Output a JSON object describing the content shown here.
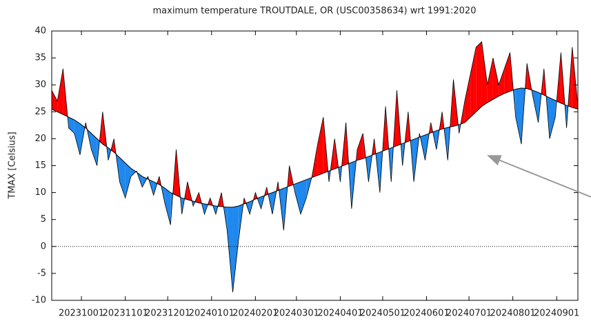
{
  "chart_data": {
    "type": "anomaly",
    "title": "maximum temperature TROUTDALE, OR (USC00358634) wrt 1991:2020",
    "y_label": "TMAX [Celsius]",
    "x": [
      "20230910",
      "20230914",
      "20230918",
      "20230922",
      "20230926",
      "20230930",
      "20231004",
      "20231008",
      "20231012",
      "20231016",
      "20231020",
      "20231024",
      "20231028",
      "20231101",
      "20231105",
      "20231109",
      "20231113",
      "20231117",
      "20231121",
      "20231125",
      "20231129",
      "20231203",
      "20231207",
      "20231211",
      "20231215",
      "20231219",
      "20231223",
      "20231227",
      "20231231",
      "20240104",
      "20240108",
      "20240112",
      "20240116",
      "20240120",
      "20240124",
      "20240128",
      "20240201",
      "20240205",
      "20240209",
      "20240213",
      "20240217",
      "20240221",
      "20240225",
      "20240229",
      "20240304",
      "20240308",
      "20240312",
      "20240316",
      "20240320",
      "20240324",
      "20240328",
      "20240401",
      "20240405",
      "20240409",
      "20240413",
      "20240417",
      "20240421",
      "20240425",
      "20240429",
      "20240503",
      "20240507",
      "20240511",
      "20240515",
      "20240519",
      "20240523",
      "20240527",
      "20240531",
      "20240604",
      "20240608",
      "20240612",
      "20240616",
      "20240620",
      "20240624",
      "20240628",
      "20240702",
      "20240706",
      "20240710",
      "20240714",
      "20240718",
      "20240722",
      "20240726",
      "20240730",
      "20240803",
      "20240807",
      "20240811",
      "20240815",
      "20240819",
      "20240823",
      "20240827",
      "20240831",
      "20240904",
      "20240908",
      "20240912",
      "20240916"
    ],
    "values": [
      29,
      27,
      33,
      22,
      21,
      17,
      23,
      18,
      15,
      25,
      16,
      20,
      12,
      9,
      13,
      14,
      11,
      13,
      9.5,
      13,
      8,
      4,
      18,
      6,
      12,
      7.5,
      10,
      6,
      9,
      6,
      10,
      3,
      -8.5,
      1,
      9,
      6,
      10,
      7,
      11,
      6,
      12,
      3,
      15,
      10,
      6,
      9,
      13,
      19,
      24,
      12,
      20,
      12,
      23,
      7,
      18,
      21,
      12,
      20,
      10,
      26,
      12,
      29,
      15,
      25,
      12,
      21,
      16,
      23,
      18,
      25,
      16,
      31,
      21,
      27,
      32,
      37,
      38,
      30,
      35,
      30,
      33,
      36,
      24,
      19,
      34,
      28,
      23,
      33,
      20,
      24,
      36,
      22,
      37,
      26
    ],
    "normal": [
      25.5,
      25,
      24.5,
      24,
      23.5,
      22.8,
      22,
      21,
      20,
      19,
      18.3,
      17.5,
      16.5,
      15.5,
      14.5,
      13.8,
      13,
      12.5,
      12,
      11.5,
      10.8,
      10,
      9.5,
      9,
      8.7,
      8.4,
      8.1,
      7.9,
      7.7,
      7.5,
      7.4,
      7.3,
      7.3,
      7.5,
      7.9,
      8.3,
      8.8,
      9.2,
      9.6,
      10,
      10.4,
      10.8,
      11.2,
      11.6,
      12,
      12.4,
      12.8,
      13.2,
      13.6,
      14,
      14.4,
      14.8,
      15.2,
      15.6,
      16,
      16.3,
      16.7,
      17.1,
      17.5,
      17.9,
      18.3,
      18.7,
      19.1,
      19.5,
      19.9,
      20.3,
      20.7,
      21.1,
      21.5,
      21.8,
      22.1,
      22.3,
      22.6,
      23,
      24,
      25,
      26,
      26.7,
      27.3,
      27.9,
      28.4,
      28.8,
      29.2,
      29.4,
      29.3,
      29,
      28.6,
      28.1,
      27.6,
      27.1,
      26.6,
      26.2,
      25.8,
      25.5
    ],
    "above_color": "#ff0000",
    "below_color": "#1e88ee",
    "line_color": "#000000",
    "xlim": [
      "20230910",
      "20240916"
    ],
    "xticks": [
      "20231001",
      "20231101",
      "20231201",
      "20240101",
      "20240201",
      "20240301",
      "20240401",
      "20240501",
      "20240601",
      "20240701",
      "20240801",
      "20240901"
    ],
    "ylim": [
      -10,
      40
    ],
    "yticks": [
      -10,
      -5,
      0,
      5,
      10,
      15,
      20,
      25,
      30,
      35,
      40
    ],
    "zero_line": true,
    "grid": false
  }
}
